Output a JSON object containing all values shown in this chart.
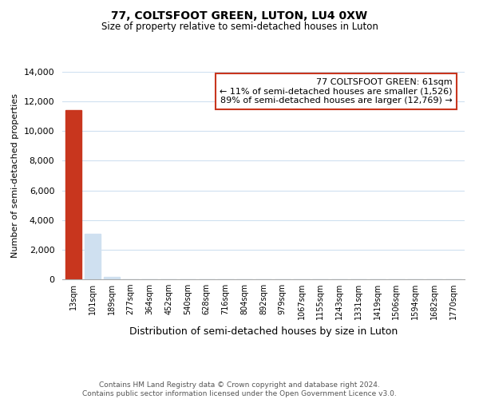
{
  "title": "77, COLTSFOOT GREEN, LUTON, LU4 0XW",
  "subtitle": "Size of property relative to semi-detached houses in Luton",
  "xlabel": "Distribution of semi-detached houses by size in Luton",
  "ylabel": "Number of semi-detached properties",
  "categories": [
    "13sqm",
    "101sqm",
    "189sqm",
    "277sqm",
    "364sqm",
    "452sqm",
    "540sqm",
    "628sqm",
    "716sqm",
    "804sqm",
    "892sqm",
    "979sqm",
    "1067sqm",
    "1155sqm",
    "1243sqm",
    "1331sqm",
    "1419sqm",
    "1506sqm",
    "1594sqm",
    "1682sqm",
    "1770sqm"
  ],
  "values": [
    11400,
    3050,
    150,
    0,
    0,
    0,
    0,
    0,
    0,
    0,
    0,
    0,
    0,
    0,
    0,
    0,
    0,
    0,
    0,
    0,
    0
  ],
  "bar_color_normal": "#cfe0f0",
  "bar_color_highlight": "#c8361e",
  "highlight_index": 0,
  "ylim": [
    0,
    14000
  ],
  "yticks": [
    0,
    2000,
    4000,
    6000,
    8000,
    10000,
    12000,
    14000
  ],
  "annotation_box_text": "77 COLTSFOOT GREEN: 61sqm\n← 11% of semi-detached houses are smaller (1,526)\n89% of semi-detached houses are larger (12,769) →",
  "footer_line1": "Contains HM Land Registry data © Crown copyright and database right 2024.",
  "footer_line2": "Contains public sector information licensed under the Open Government Licence v3.0.",
  "background_color": "#ffffff",
  "grid_color": "#cfe0f0"
}
